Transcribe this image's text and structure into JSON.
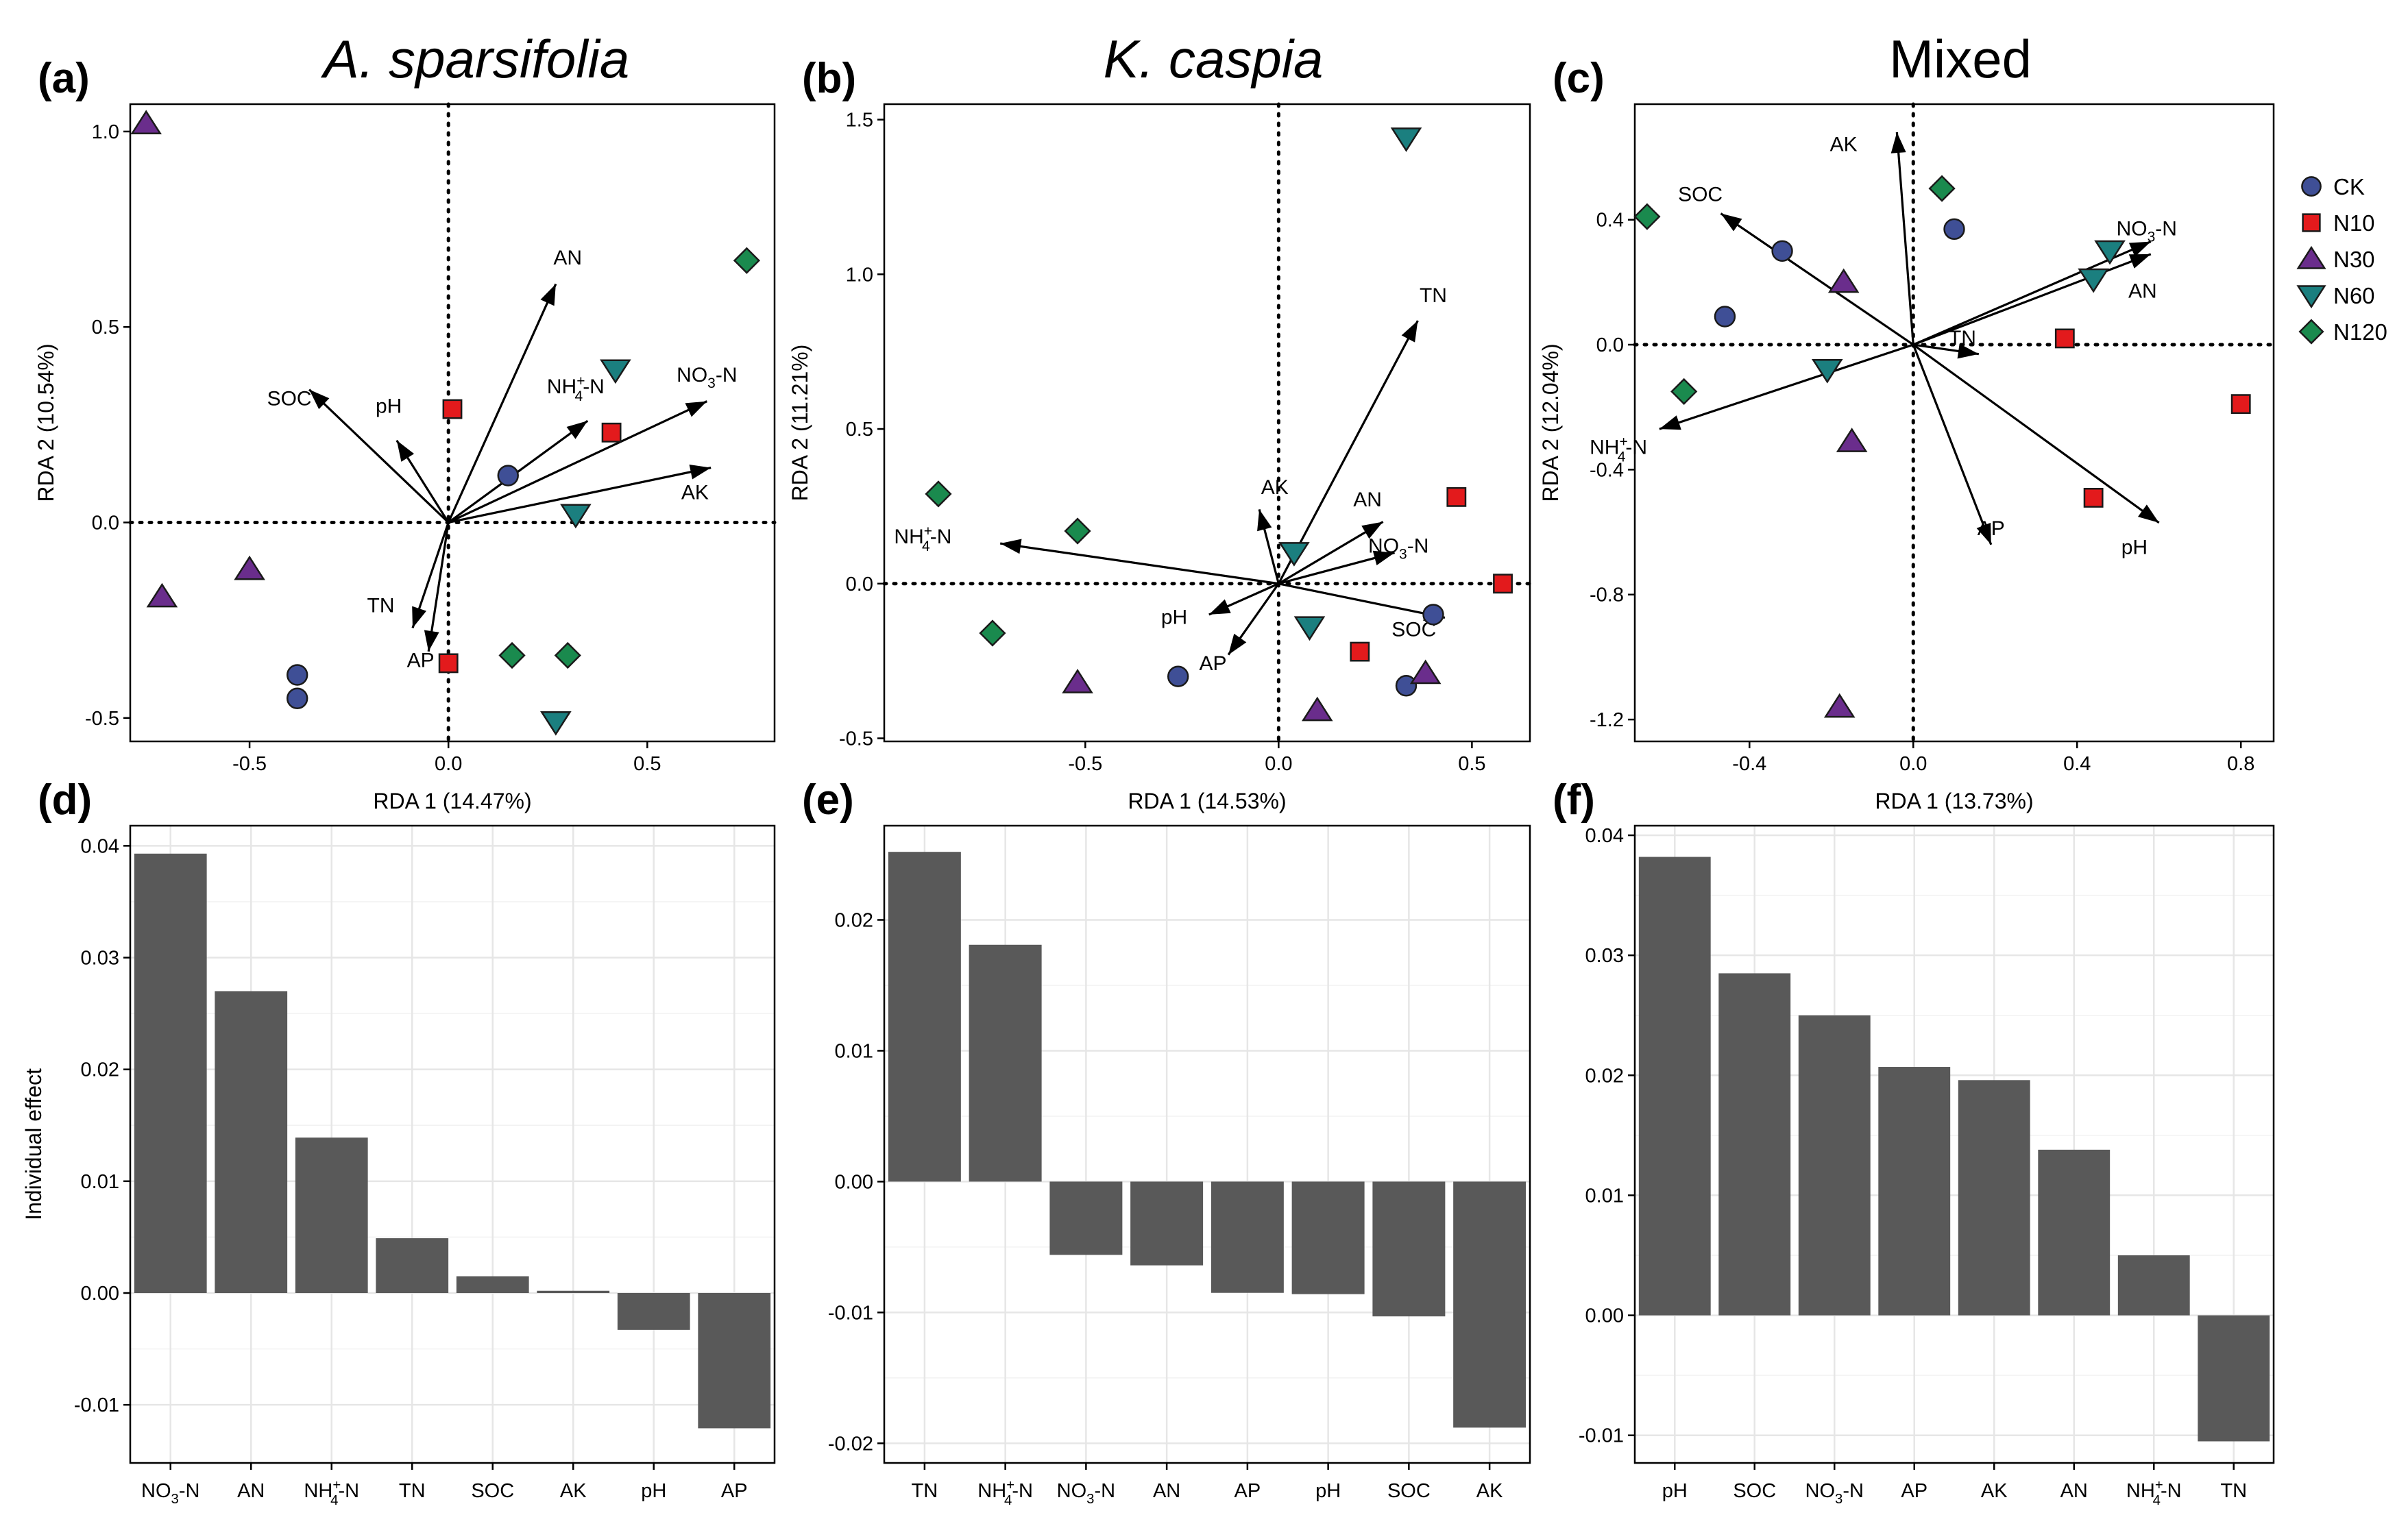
{
  "figure": {
    "panels": [
      {
        "letter": "(a)",
        "title": "A. sparsifolia",
        "italic": true
      },
      {
        "letter": "(b)",
        "title": "K.  caspia",
        "italic": true
      },
      {
        "letter": "(c)",
        "title": "Mixed",
        "italic": false
      },
      {
        "letter": "(d)",
        "title": "",
        "italic": false
      },
      {
        "letter": "(e)",
        "title": "",
        "italic": false
      },
      {
        "letter": "(f)",
        "title": "",
        "italic": false
      }
    ],
    "legend": [
      {
        "label": "CK",
        "shape": "circle",
        "color": "#3f4f96"
      },
      {
        "label": "N10",
        "shape": "square",
        "color": "#e31a1c"
      },
      {
        "label": "N30",
        "shape": "triangle-up",
        "color": "#6a2d8c"
      },
      {
        "label": "N60",
        "shape": "triangle-down",
        "color": "#1b7f7f"
      },
      {
        "label": "N120",
        "shape": "diamond",
        "color": "#1a8a4e"
      }
    ]
  },
  "chart_data": [
    {
      "type": "scatter",
      "panel": "(a)",
      "title": "A. sparsifolia",
      "xlabel": "RDA 1 (14.47%)",
      "ylabel": "RDA 2 (10.54%)",
      "xlim": [
        -0.8,
        0.82
      ],
      "ylim": [
        -0.56,
        1.07
      ],
      "xticks": [
        -0.5,
        0.0,
        0.5
      ],
      "yticks": [
        -0.5,
        0.0,
        0.5,
        1.0
      ],
      "xtick_labels": [
        "-0.5",
        "0.0",
        "0.5"
      ],
      "ytick_labels": [
        "-0.5",
        "0.0",
        "0.5",
        "1.0"
      ],
      "points": [
        {
          "group": "CK",
          "x": -0.38,
          "y": -0.39
        },
        {
          "group": "CK",
          "x": -0.38,
          "y": -0.45
        },
        {
          "group": "CK",
          "x": 0.15,
          "y": 0.12
        },
        {
          "group": "N10",
          "x": 0.01,
          "y": 0.29
        },
        {
          "group": "N10",
          "x": 0.41,
          "y": 0.23
        },
        {
          "group": "N10",
          "x": 0.0,
          "y": -0.36
        },
        {
          "group": "N30",
          "x": -0.76,
          "y": 1.02
        },
        {
          "group": "N30",
          "x": -0.72,
          "y": -0.19
        },
        {
          "group": "N30",
          "x": -0.5,
          "y": -0.12
        },
        {
          "group": "N60",
          "x": 0.42,
          "y": 0.39
        },
        {
          "group": "N60",
          "x": 0.32,
          "y": 0.02
        },
        {
          "group": "N60",
          "x": 0.27,
          "y": -0.51
        },
        {
          "group": "N120",
          "x": 0.75,
          "y": 0.67
        },
        {
          "group": "N120",
          "x": 0.16,
          "y": -0.34
        },
        {
          "group": "N120",
          "x": 0.3,
          "y": -0.34
        }
      ],
      "vectors": [
        {
          "name": "AN",
          "x": 0.27,
          "y": 0.61,
          "lx": 0.3,
          "ly": 0.66
        },
        {
          "name": "NH4+-N",
          "x": 0.35,
          "y": 0.26,
          "lx": 0.32,
          "ly": 0.33
        },
        {
          "name": "NO3-N",
          "x": 0.65,
          "y": 0.31,
          "lx": 0.65,
          "ly": 0.36
        },
        {
          "name": "AK",
          "x": 0.66,
          "y": 0.14,
          "lx": 0.62,
          "ly": 0.06
        },
        {
          "name": "SOC",
          "x": -0.35,
          "y": 0.34,
          "lx": -0.4,
          "ly": 0.3
        },
        {
          "name": "pH",
          "x": -0.13,
          "y": 0.21,
          "lx": -0.15,
          "ly": 0.28
        },
        {
          "name": "TN",
          "x": -0.09,
          "y": -0.27,
          "lx": -0.17,
          "ly": -0.23
        },
        {
          "name": "AP",
          "x": -0.05,
          "y": -0.33,
          "lx": -0.07,
          "ly": -0.37
        }
      ]
    },
    {
      "type": "scatter",
      "panel": "(b)",
      "title": "K.  caspia",
      "xlabel": "RDA 1 (14.53%)",
      "ylabel": "RDA 2 (11.21%)",
      "xlim": [
        -1.02,
        0.65
      ],
      "ylim": [
        -0.51,
        1.55
      ],
      "xticks": [
        -0.5,
        0.0,
        0.5
      ],
      "yticks": [
        -0.5,
        0.0,
        0.5,
        1.0,
        1.5
      ],
      "xtick_labels": [
        "-0.5",
        "0.0",
        "0.5"
      ],
      "ytick_labels": [
        "-0.5",
        "0.0",
        "0.5",
        "1.0",
        "1.5"
      ],
      "points": [
        {
          "group": "CK",
          "x": -0.26,
          "y": -0.3
        },
        {
          "group": "CK",
          "x": 0.4,
          "y": -0.1
        },
        {
          "group": "CK",
          "x": 0.33,
          "y": -0.33
        },
        {
          "group": "N10",
          "x": 0.46,
          "y": 0.28
        },
        {
          "group": "N10",
          "x": 0.58,
          "y": 0.0
        },
        {
          "group": "N10",
          "x": 0.21,
          "y": -0.22
        },
        {
          "group": "N30",
          "x": -0.52,
          "y": -0.32
        },
        {
          "group": "N30",
          "x": 0.38,
          "y": -0.29
        },
        {
          "group": "N30",
          "x": 0.1,
          "y": -0.41
        },
        {
          "group": "N60",
          "x": 0.33,
          "y": 1.44
        },
        {
          "group": "N60",
          "x": 0.04,
          "y": 0.1
        },
        {
          "group": "N60",
          "x": 0.08,
          "y": -0.14
        },
        {
          "group": "N120",
          "x": -0.88,
          "y": 0.29
        },
        {
          "group": "N120",
          "x": -0.52,
          "y": 0.17
        },
        {
          "group": "N120",
          "x": -0.74,
          "y": -0.16
        }
      ],
      "vectors": [
        {
          "name": "TN",
          "x": 0.36,
          "y": 0.85,
          "lx": 0.4,
          "ly": 0.91
        },
        {
          "name": "AK",
          "x": -0.05,
          "y": 0.24,
          "lx": -0.01,
          "ly": 0.29
        },
        {
          "name": "AN",
          "x": 0.27,
          "y": 0.2,
          "lx": 0.23,
          "ly": 0.25
        },
        {
          "name": "NO3-N",
          "x": 0.3,
          "y": 0.1,
          "lx": 0.31,
          "ly": 0.1
        },
        {
          "name": "SOC",
          "x": 0.43,
          "y": -0.11,
          "lx": 0.35,
          "ly": -0.17
        },
        {
          "name": "NH4+-N",
          "x": -0.72,
          "y": 0.13,
          "lx": -0.92,
          "ly": 0.13
        },
        {
          "name": "pH",
          "x": -0.18,
          "y": -0.1,
          "lx": -0.27,
          "ly": -0.13
        },
        {
          "name": "AP",
          "x": -0.13,
          "y": -0.23,
          "lx": -0.17,
          "ly": -0.28
        }
      ]
    },
    {
      "type": "scatter",
      "panel": "(c)",
      "title": "Mixed",
      "xlabel": "RDA 1 (13.73%)",
      "ylabel": "RDA 2 (12.04%)",
      "xlim": [
        -0.68,
        0.88
      ],
      "ylim": [
        -1.27,
        0.77
      ],
      "xticks": [
        -0.4,
        0.0,
        0.4,
        0.8
      ],
      "yticks": [
        -1.2,
        -0.8,
        -0.4,
        0.0,
        0.4
      ],
      "xtick_labels": [
        "-0.4",
        "0.0",
        "0.4",
        "0.8"
      ],
      "ytick_labels": [
        "-1.2",
        "-0.8",
        "-0.4",
        "0.0",
        "0.4"
      ],
      "points": [
        {
          "group": "CK",
          "x": -0.32,
          "y": 0.3
        },
        {
          "group": "CK",
          "x": -0.46,
          "y": 0.09
        },
        {
          "group": "CK",
          "x": 0.1,
          "y": 0.37
        },
        {
          "group": "N10",
          "x": 0.37,
          "y": 0.02
        },
        {
          "group": "N10",
          "x": 0.8,
          "y": -0.19
        },
        {
          "group": "N10",
          "x": 0.44,
          "y": -0.49
        },
        {
          "group": "N30",
          "x": -0.17,
          "y": 0.2
        },
        {
          "group": "N30",
          "x": -0.15,
          "y": -0.31
        },
        {
          "group": "N30",
          "x": -0.18,
          "y": -1.16
        },
        {
          "group": "N60",
          "x": 0.48,
          "y": 0.3
        },
        {
          "group": "N60",
          "x": 0.44,
          "y": 0.21
        },
        {
          "group": "N60",
          "x": -0.21,
          "y": -0.08
        },
        {
          "group": "N120",
          "x": -0.65,
          "y": 0.41
        },
        {
          "group": "N120",
          "x": 0.07,
          "y": 0.5
        },
        {
          "group": "N120",
          "x": -0.56,
          "y": -0.15
        }
      ],
      "vectors": [
        {
          "name": "AK",
          "x": -0.04,
          "y": 0.68,
          "lx": -0.17,
          "ly": 0.62
        },
        {
          "name": "SOC",
          "x": -0.47,
          "y": 0.42,
          "lx": -0.52,
          "ly": 0.46
        },
        {
          "name": "NO3-N",
          "x": 0.58,
          "y": 0.33,
          "lx": 0.57,
          "ly": 0.35
        },
        {
          "name": "AN",
          "x": 0.58,
          "y": 0.29,
          "lx": 0.56,
          "ly": 0.15
        },
        {
          "name": "TN",
          "x": 0.16,
          "y": -0.03,
          "lx": 0.12,
          "ly": 0.0
        },
        {
          "name": "NH4+-N",
          "x": -0.62,
          "y": -0.27,
          "lx": -0.72,
          "ly": -0.35
        },
        {
          "name": "AP",
          "x": 0.19,
          "y": -0.64,
          "lx": 0.19,
          "ly": -0.61
        },
        {
          "name": "pH",
          "x": 0.6,
          "y": -0.57,
          "lx": 0.54,
          "ly": -0.67
        }
      ]
    },
    {
      "type": "bar",
      "panel": "(d)",
      "ylabel": "Individual effect",
      "categories": [
        "NO3-N",
        "AN",
        "NH4+-N",
        "TN",
        "SOC",
        "AK",
        "pH",
        "AP"
      ],
      "values": [
        0.0393,
        0.027,
        0.0139,
        0.0049,
        0.0015,
        0.0002,
        -0.0033,
        -0.0121
      ],
      "ylim": [
        -0.0152,
        0.0418
      ],
      "yticks": [
        -0.01,
        0.0,
        0.01,
        0.02,
        0.03,
        0.04
      ],
      "ytick_labels": [
        "-0.01",
        "0.00",
        "0.01",
        "0.02",
        "0.03",
        "0.04"
      ]
    },
    {
      "type": "bar",
      "panel": "(e)",
      "ylabel": "",
      "categories": [
        "TN",
        "NH4+-N",
        "NO3-N",
        "AN",
        "AP",
        "pH",
        "SOC",
        "AK"
      ],
      "values": [
        0.0252,
        0.0181,
        -0.0056,
        -0.0064,
        -0.0085,
        -0.0086,
        -0.0103,
        -0.0188
      ],
      "ylim": [
        -0.0215,
        0.0272
      ],
      "yticks": [
        -0.02,
        -0.01,
        0.0,
        0.01,
        0.02
      ],
      "ytick_labels": [
        "-0.02",
        "-0.01",
        "0.00",
        "0.01",
        "0.02"
      ]
    },
    {
      "type": "bar",
      "panel": "(f)",
      "ylabel": "",
      "categories": [
        "pH",
        "SOC",
        "NO3-N",
        "AP",
        "AK",
        "AN",
        "NH4+-N",
        "TN"
      ],
      "values": [
        0.0382,
        0.0285,
        0.025,
        0.0207,
        0.0196,
        0.0138,
        0.005,
        -0.0105
      ],
      "ylim": [
        -0.0123,
        0.0408
      ],
      "yticks": [
        -0.01,
        0.0,
        0.01,
        0.02,
        0.03,
        0.04
      ],
      "ytick_labels": [
        "-0.01",
        "0.00",
        "0.01",
        "0.02",
        "0.03",
        "0.04"
      ]
    }
  ]
}
